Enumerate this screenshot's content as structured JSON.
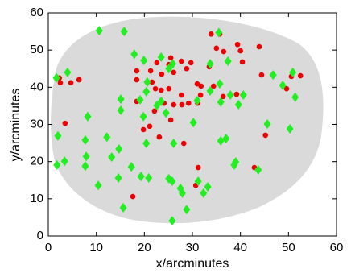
{
  "chart_data": {
    "type": "scatter",
    "x_label": "x/arcminutes",
    "y_label": "y/arcminutes",
    "xlim": [
      0,
      60
    ],
    "ylim": [
      0,
      60
    ],
    "xticks": [
      0,
      10,
      20,
      30,
      40,
      50,
      60
    ],
    "yticks": [
      0,
      10,
      20,
      30,
      40,
      50,
      60
    ],
    "series": [
      {
        "marker": "circle",
        "color": "#ee0000",
        "x": [
          33.9,
          35.7,
          35.0,
          36.5,
          39.4,
          40.0,
          43.9,
          25.5,
          25.1,
          27.7,
          29.7,
          22.6,
          33.5,
          40.4,
          18.4,
          21.3,
          23.6,
          26.1,
          28.8,
          2.3,
          2.5,
          4.7,
          6.4,
          18.4,
          44.4,
          50.6,
          52.5,
          21.6,
          31.0,
          31.8,
          34.4,
          22.3,
          23.5,
          25.1,
          31.7,
          27.7,
          36.4,
          39.2,
          49.6,
          18.4,
          24.1,
          26.1,
          27.8,
          29.2,
          31.1,
          22.1,
          3.5,
          25.5,
          21.1,
          23.1,
          28.2,
          31.2,
          42.9,
          30.7,
          17.6,
          19.8,
          45.2
        ],
        "y": [
          54.3,
          54.3,
          50.5,
          49.6,
          51.5,
          49.8,
          50.9,
          47.9,
          46.1,
          47.0,
          46.6,
          46.6,
          45.5,
          46.8,
          44.4,
          44.4,
          43.5,
          44.0,
          45.0,
          42.5,
          41.2,
          41.2,
          42.0,
          42.0,
          43.3,
          42.9,
          43.1,
          41.4,
          40.9,
          40.3,
          40.3,
          39.6,
          39.2,
          39.6,
          37.9,
          37.9,
          37.5,
          38.1,
          39.6,
          36.2,
          35.7,
          35.3,
          35.3,
          35.7,
          35.7,
          33.6,
          30.3,
          31.2,
          29.5,
          26.6,
          24.9,
          18.4,
          18.4,
          13.6,
          10.6,
          28.6,
          27.1
        ]
      },
      {
        "marker": "diamond",
        "color": "#22ee22",
        "x": [
          10.6,
          15.8,
          35.5,
          17.9,
          19.9,
          23.5,
          4.0,
          25.1,
          25.9,
          33.7,
          37.4,
          1.7,
          46.8,
          48.8,
          20.6,
          35.7,
          50.9,
          33.7,
          37.9,
          40.6,
          51.4,
          15.1,
          19.1,
          20.4,
          23.5,
          22.6,
          8.2,
          19.8,
          15.1,
          31.0,
          35.9,
          39.6,
          24.5,
          30.2,
          45.6,
          50.3,
          7.7,
          2.0,
          12.2,
          14.7,
          20.4,
          26.1,
          35.9,
          37.0,
          1.8,
          3.4,
          7.7,
          7.9,
          13.2,
          17.3,
          19.3,
          39.0,
          38.7,
          43.7,
          10.4,
          14.6,
          20.9,
          25.1,
          25.8,
          27.5,
          27.9,
          31.2,
          33.2,
          32.3,
          15.6,
          28.8,
          25.8
        ],
        "y": [
          55.2,
          55.0,
          54.7,
          48.9,
          47.2,
          48.1,
          44.0,
          45.0,
          46.3,
          46.3,
          47.0,
          42.5,
          43.3,
          40.5,
          41.4,
          40.9,
          44.0,
          39.0,
          37.9,
          37.9,
          37.3,
          36.8,
          36.6,
          38.8,
          36.2,
          35.1,
          32.1,
          32.1,
          33.8,
          36.4,
          36.0,
          35.3,
          33.1,
          30.5,
          30.1,
          28.8,
          25.8,
          26.9,
          26.6,
          23.4,
          24.9,
          24.9,
          25.6,
          26.2,
          19.1,
          20.1,
          18.8,
          21.4,
          21.2,
          18.6,
          16.0,
          19.9,
          19.1,
          17.8,
          13.6,
          15.6,
          15.6,
          15.4,
          14.7,
          12.8,
          11.5,
          14.7,
          13.2,
          11.5,
          7.6,
          7.1,
          4.1
        ]
      }
    ]
  }
}
